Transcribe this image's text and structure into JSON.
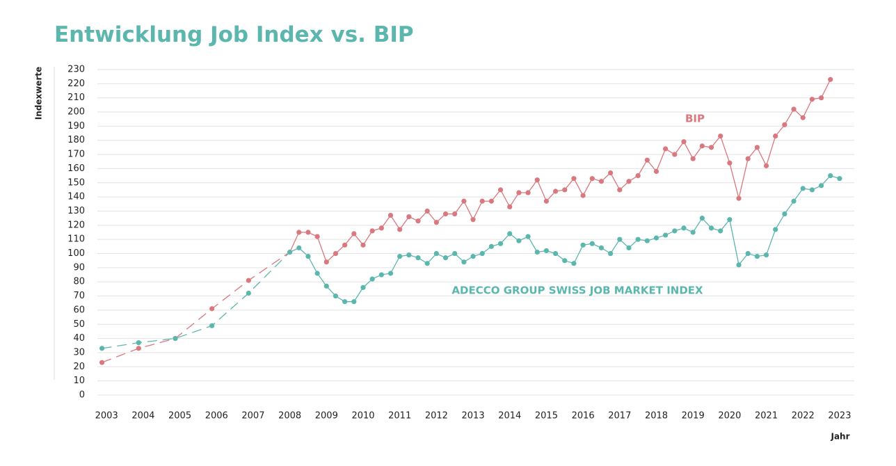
{
  "chart_data": {
    "type": "line",
    "title": "Entwicklung Job Index vs. BIP",
    "y_label": "Indexwerte",
    "x_label": "Jahr",
    "x": [
      2002.875,
      2003.875,
      2004.875,
      2005.875,
      2006.875,
      2008,
      2008.25,
      2008.5,
      2008.75,
      2009,
      2009.25,
      2009.5,
      2009.75,
      2010,
      2010.25,
      2010.5,
      2010.75,
      2011,
      2011.25,
      2011.5,
      2011.75,
      2012,
      2012.25,
      2012.5,
      2012.75,
      2013,
      2013.25,
      2013.5,
      2013.75,
      2014,
      2014.25,
      2014.5,
      2014.75,
      2015,
      2015.25,
      2015.5,
      2015.75,
      2016,
      2016.25,
      2016.5,
      2016.75,
      2017,
      2017.25,
      2017.5,
      2017.75,
      2018,
      2018.25,
      2018.5,
      2018.75,
      2019,
      2019.25,
      2019.5,
      2019.75,
      2020,
      2020.25,
      2020.5,
      2020.75,
      2021,
      2021.25,
      2021.5,
      2021.75,
      2022,
      2022.25,
      2022.5,
      2022.75,
      2023
    ],
    "series": [
      {
        "name": "BIP",
        "color": "#d9787e",
        "values": [
          23,
          33,
          40,
          61,
          81,
          101,
          115,
          115,
          112,
          94,
          100,
          106,
          114,
          106,
          116,
          118,
          127,
          117,
          126,
          123,
          130,
          122,
          128,
          128,
          137,
          124,
          137,
          137,
          145,
          133,
          143,
          143,
          152,
          137,
          144,
          145,
          153,
          141,
          153,
          151,
          157,
          145,
          151,
          155,
          166,
          158,
          174,
          170,
          179,
          167,
          176,
          175,
          183,
          164,
          139,
          167,
          175,
          162,
          183,
          191,
          202,
          196,
          209,
          210,
          223,
          null
        ]
      },
      {
        "name": "ADECCO GROUP SWISS JOB MARKET INDEX",
        "color": "#5bb7ae",
        "values": [
          33,
          37,
          40,
          49,
          72,
          101,
          104,
          98,
          86,
          77,
          70,
          66,
          66,
          76,
          82,
          85,
          86,
          98,
          99,
          97,
          93,
          100,
          97,
          100,
          94,
          98,
          100,
          105,
          107,
          114,
          109,
          112,
          101,
          102,
          100,
          95,
          93,
          106,
          107,
          104,
          100,
          110,
          104,
          110,
          109,
          111,
          113,
          116,
          118,
          115,
          125,
          118,
          116,
          124,
          92,
          100,
          98,
          99,
          117,
          128,
          137,
          146,
          145,
          148,
          155,
          153
        ]
      }
    ],
    "xlim": [
      2002.75,
      2023.4
    ],
    "xticks": [
      2003,
      2004,
      2005,
      2006,
      2007,
      2008,
      2009,
      2010,
      2011,
      2012,
      2013,
      2014,
      2015,
      2016,
      2017,
      2018,
      2019,
      2020,
      2021,
      2022,
      2023
    ],
    "ylim": [
      0,
      230
    ],
    "yticks": [
      0,
      10,
      20,
      30,
      40,
      50,
      60,
      70,
      80,
      90,
      100,
      110,
      120,
      130,
      140,
      150,
      160,
      170,
      180,
      190,
      200,
      210,
      220,
      230
    ],
    "grid": true
  }
}
